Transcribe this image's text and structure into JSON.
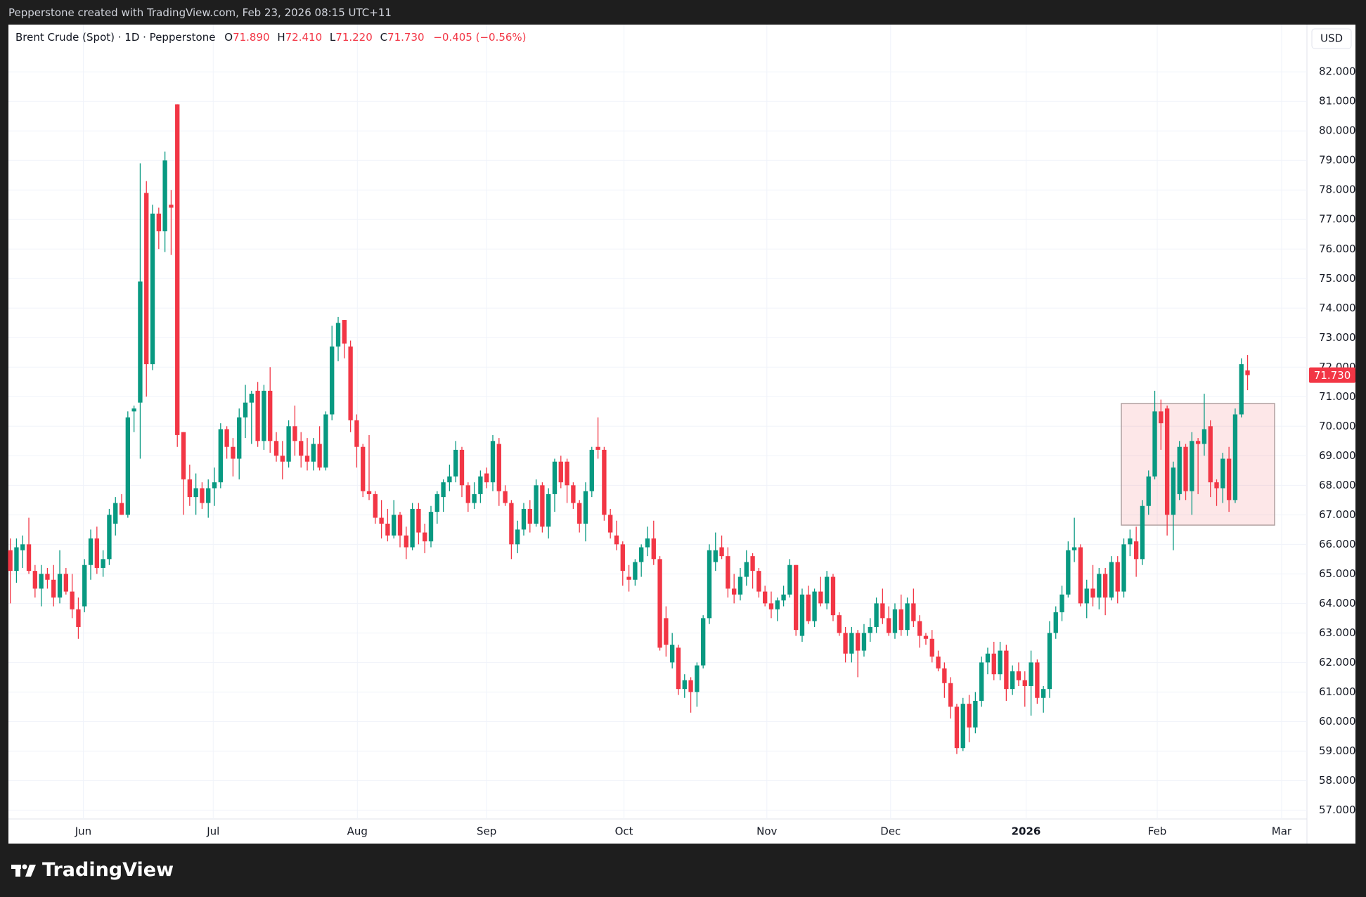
{
  "top_bar": "Pepperstone created with TradingView.com, Feb 23, 2026 08:15 UTC+11",
  "brand": "TradingView",
  "chart_data": {
    "type": "candlestick",
    "title": "Brent Crude (Spot) · 1D · Pepperstone",
    "legend": {
      "o_label": "O",
      "open": "71.890",
      "h_label": "H",
      "high": "72.410",
      "l_label": "L",
      "low": "71.220",
      "c_label": "C",
      "close": "71.730",
      "change": "−0.405 (−0.56%)"
    },
    "currency": "USD",
    "price_label": "71.730",
    "up_color": "#089981",
    "down_color": "#f23645",
    "grid": true,
    "xlim": [
      -0.3,
      209.6
    ],
    "xticks": [
      {
        "value": 11.8,
        "label": "Jun"
      },
      {
        "value": 32.8,
        "label": "Jul"
      },
      {
        "value": 56.1,
        "label": "Aug"
      },
      {
        "value": 77,
        "label": "Sep"
      },
      {
        "value": 99.2,
        "label": "Oct"
      },
      {
        "value": 122.3,
        "label": "Nov"
      },
      {
        "value": 142.3,
        "label": "Dec"
      },
      {
        "value": 164.2,
        "label": "2026"
      },
      {
        "value": 185.4,
        "label": "Feb"
      },
      {
        "value": 205.5,
        "label": "Mar"
      }
    ],
    "ylim": [
      56.7,
      83.6
    ],
    "yticks": [
      {
        "value": 57,
        "label": "57.000"
      },
      {
        "value": 58,
        "label": "58.000"
      },
      {
        "value": 59,
        "label": "59.000"
      },
      {
        "value": 60,
        "label": "60.000"
      },
      {
        "value": 61,
        "label": "61.000"
      },
      {
        "value": 62,
        "label": "62.000"
      },
      {
        "value": 63,
        "label": "63.000"
      },
      {
        "value": 64,
        "label": "64.000"
      },
      {
        "value": 65,
        "label": "65.000"
      },
      {
        "value": 66,
        "label": "66.000"
      },
      {
        "value": 67,
        "label": "67.000"
      },
      {
        "value": 68,
        "label": "68.000"
      },
      {
        "value": 69,
        "label": "69.000"
      },
      {
        "value": 70,
        "label": "70.000"
      },
      {
        "value": 71,
        "label": "71.000"
      },
      {
        "value": 72,
        "label": "72.000"
      },
      {
        "value": 73,
        "label": "73.000"
      },
      {
        "value": 74,
        "label": "74.000"
      },
      {
        "value": 75,
        "label": "75.000"
      },
      {
        "value": 76,
        "label": "76.000"
      },
      {
        "value": 77,
        "label": "77.000"
      },
      {
        "value": 78,
        "label": "78.000"
      },
      {
        "value": 79,
        "label": "79.000"
      },
      {
        "value": 80,
        "label": "80.000"
      },
      {
        "value": 81,
        "label": "81.000"
      },
      {
        "value": 82,
        "label": "82.000"
      }
    ],
    "candles": [
      [
        65.8,
        66.2,
        64.0,
        65.1
      ],
      [
        65.1,
        66.2,
        64.7,
        65.9
      ],
      [
        65.8,
        66.3,
        65.2,
        66.0
      ],
      [
        66.0,
        66.9,
        65.0,
        65.1
      ],
      [
        65.1,
        65.3,
        64.2,
        64.5
      ],
      [
        64.5,
        65.3,
        63.9,
        65.0
      ],
      [
        65.0,
        65.2,
        64.5,
        64.8
      ],
      [
        64.8,
        65.3,
        63.9,
        64.2
      ],
      [
        64.2,
        65.8,
        64.0,
        65.0
      ],
      [
        65.0,
        65.2,
        64.3,
        64.4
      ],
      [
        64.4,
        65.0,
        63.5,
        63.8
      ],
      [
        63.8,
        64.2,
        62.8,
        63.2
      ],
      [
        63.9,
        65.5,
        63.7,
        65.3
      ],
      [
        65.3,
        66.5,
        64.8,
        66.2
      ],
      [
        66.2,
        66.6,
        65.0,
        65.2
      ],
      [
        65.2,
        65.8,
        64.9,
        65.5
      ],
      [
        65.5,
        67.2,
        65.3,
        67.0
      ],
      [
        66.7,
        67.6,
        66.3,
        67.4
      ],
      [
        67.4,
        67.7,
        67.0,
        67.0
      ],
      [
        67.0,
        70.5,
        66.9,
        70.3
      ],
      [
        70.5,
        70.7,
        69.8,
        70.6
      ],
      [
        70.8,
        78.9,
        68.9,
        74.9
      ],
      [
        77.9,
        78.3,
        71.0,
        72.1
      ],
      [
        72.1,
        77.5,
        71.9,
        77.2
      ],
      [
        77.2,
        77.4,
        76.0,
        76.6
      ],
      [
        76.6,
        79.3,
        75.9,
        79.0
      ],
      [
        77.5,
        78.0,
        75.8,
        77.4
      ],
      [
        80.9,
        80.9,
        69.3,
        69.7
      ],
      [
        69.8,
        69.8,
        67.0,
        68.2
      ],
      [
        68.2,
        68.7,
        67.3,
        67.6
      ],
      [
        67.6,
        68.4,
        67.0,
        67.9
      ],
      [
        67.9,
        68.1,
        67.2,
        67.4
      ],
      [
        67.4,
        68.2,
        66.9,
        67.9
      ],
      [
        67.9,
        68.6,
        67.3,
        68.1
      ],
      [
        68.1,
        70.1,
        67.9,
        69.9
      ],
      [
        69.9,
        70.0,
        68.9,
        69.3
      ],
      [
        69.3,
        69.6,
        68.3,
        68.9
      ],
      [
        68.9,
        70.6,
        68.2,
        70.3
      ],
      [
        70.3,
        71.4,
        69.6,
        70.8
      ],
      [
        70.8,
        71.2,
        69.4,
        71.1
      ],
      [
        71.2,
        71.5,
        69.3,
        69.5
      ],
      [
        69.5,
        71.4,
        69.2,
        71.2
      ],
      [
        71.2,
        72.0,
        69.1,
        69.5
      ],
      [
        69.5,
        69.8,
        68.8,
        69.0
      ],
      [
        69.0,
        69.5,
        68.2,
        68.8
      ],
      [
        68.8,
        70.2,
        68.6,
        70.0
      ],
      [
        70.0,
        70.7,
        69.0,
        69.5
      ],
      [
        69.5,
        69.8,
        68.6,
        69.0
      ],
      [
        69.0,
        69.6,
        68.5,
        68.8
      ],
      [
        68.8,
        69.6,
        68.5,
        69.4
      ],
      [
        69.4,
        70.0,
        68.5,
        68.6
      ],
      [
        68.6,
        70.5,
        68.5,
        70.4
      ],
      [
        70.4,
        73.4,
        70.2,
        72.7
      ],
      [
        72.7,
        73.7,
        72.2,
        73.5
      ],
      [
        73.6,
        73.6,
        72.3,
        72.8
      ],
      [
        72.7,
        72.9,
        69.8,
        70.2
      ],
      [
        70.2,
        70.4,
        68.6,
        69.3
      ],
      [
        69.3,
        69.4,
        67.6,
        67.8
      ],
      [
        67.8,
        69.7,
        67.5,
        67.7
      ],
      [
        67.7,
        67.8,
        66.7,
        66.9
      ],
      [
        66.9,
        67.5,
        66.2,
        66.7
      ],
      [
        66.7,
        67.2,
        66.1,
        66.3
      ],
      [
        66.3,
        67.5,
        66.2,
        67.0
      ],
      [
        67.0,
        67.1,
        65.9,
        66.3
      ],
      [
        66.3,
        66.6,
        65.5,
        65.9
      ],
      [
        65.9,
        67.4,
        65.8,
        67.2
      ],
      [
        67.2,
        67.4,
        66.0,
        66.4
      ],
      [
        66.4,
        66.7,
        65.7,
        66.1
      ],
      [
        66.1,
        67.3,
        65.9,
        67.1
      ],
      [
        67.1,
        67.8,
        66.7,
        67.7
      ],
      [
        67.6,
        68.2,
        67.1,
        68.1
      ],
      [
        68.1,
        68.7,
        67.8,
        68.3
      ],
      [
        68.3,
        69.5,
        68.1,
        69.2
      ],
      [
        69.2,
        69.3,
        67.6,
        68.0
      ],
      [
        68.0,
        68.1,
        67.1,
        67.4
      ],
      [
        67.4,
        68.1,
        67.2,
        67.7
      ],
      [
        67.7,
        68.5,
        67.4,
        68.3
      ],
      [
        68.4,
        68.6,
        67.9,
        68.1
      ],
      [
        68.1,
        69.7,
        67.8,
        69.5
      ],
      [
        69.4,
        69.6,
        67.3,
        67.8
      ],
      [
        67.8,
        68.0,
        67.3,
        67.4
      ],
      [
        67.4,
        67.5,
        65.5,
        66.0
      ],
      [
        66.0,
        66.8,
        65.7,
        66.5
      ],
      [
        66.5,
        67.4,
        66.3,
        67.2
      ],
      [
        67.2,
        67.5,
        66.4,
        66.7
      ],
      [
        66.7,
        68.2,
        66.6,
        68.0
      ],
      [
        68.0,
        68.1,
        66.4,
        66.6
      ],
      [
        66.6,
        67.9,
        66.2,
        67.7
      ],
      [
        67.7,
        68.9,
        67.1,
        68.8
      ],
      [
        68.8,
        69.0,
        67.9,
        68.1
      ],
      [
        68.8,
        68.9,
        67.4,
        68.0
      ],
      [
        68.0,
        68.1,
        67.2,
        67.4
      ],
      [
        67.4,
        67.5,
        66.4,
        66.7
      ],
      [
        66.7,
        68.1,
        66.1,
        67.8
      ],
      [
        67.8,
        69.3,
        67.6,
        69.2
      ],
      [
        69.3,
        70.3,
        68.9,
        69.2
      ],
      [
        69.2,
        69.3,
        66.8,
        67.0
      ],
      [
        67.0,
        67.2,
        66.2,
        66.4
      ],
      [
        66.3,
        66.8,
        65.8,
        66.0
      ],
      [
        66.0,
        66.1,
        64.6,
        65.1
      ],
      [
        64.9,
        65.3,
        64.4,
        64.8
      ],
      [
        64.8,
        65.5,
        64.6,
        65.4
      ],
      [
        65.4,
        66.0,
        64.9,
        65.9
      ],
      [
        65.9,
        66.6,
        65.6,
        66.2
      ],
      [
        66.2,
        66.8,
        65.3,
        65.5
      ],
      [
        65.5,
        65.6,
        62.4,
        62.5
      ],
      [
        63.5,
        63.9,
        62.2,
        62.6
      ],
      [
        62.0,
        63.0,
        61.8,
        62.6
      ],
      [
        62.5,
        62.6,
        60.9,
        61.1
      ],
      [
        61.1,
        61.6,
        60.8,
        61.4
      ],
      [
        61.4,
        61.5,
        60.3,
        61.0
      ],
      [
        61.0,
        62.0,
        60.5,
        61.9
      ],
      [
        61.9,
        63.6,
        61.8,
        63.5
      ],
      [
        63.5,
        66.0,
        63.3,
        65.8
      ],
      [
        65.4,
        66.4,
        65.1,
        65.8
      ],
      [
        65.9,
        66.3,
        65.5,
        65.6
      ],
      [
        65.6,
        65.9,
        64.2,
        64.5
      ],
      [
        64.5,
        65.0,
        64.0,
        64.3
      ],
      [
        64.3,
        65.2,
        64.1,
        64.9
      ],
      [
        64.9,
        65.8,
        64.6,
        65.4
      ],
      [
        65.6,
        65.7,
        64.5,
        65.1
      ],
      [
        65.1,
        65.2,
        64.2,
        64.4
      ],
      [
        64.4,
        64.6,
        63.9,
        64.0
      ],
      [
        64.0,
        64.4,
        63.5,
        63.8
      ],
      [
        63.8,
        64.2,
        63.4,
        64.1
      ],
      [
        64.1,
        64.6,
        63.9,
        64.3
      ],
      [
        64.3,
        65.5,
        64.2,
        65.3
      ],
      [
        65.3,
        65.3,
        62.9,
        63.1
      ],
      [
        62.9,
        64.5,
        62.7,
        64.3
      ],
      [
        64.3,
        64.6,
        63.3,
        63.4
      ],
      [
        63.4,
        64.5,
        63.2,
        64.4
      ],
      [
        64.4,
        64.9,
        63.9,
        64.0
      ],
      [
        64.0,
        65.1,
        63.8,
        64.9
      ],
      [
        64.9,
        65.0,
        63.4,
        63.6
      ],
      [
        63.6,
        63.7,
        62.9,
        63.0
      ],
      [
        63.0,
        63.2,
        62.0,
        62.3
      ],
      [
        62.3,
        63.2,
        62.0,
        63.0
      ],
      [
        63.0,
        63.1,
        61.5,
        62.4
      ],
      [
        62.4,
        63.3,
        62.2,
        63.0
      ],
      [
        63.0,
        63.5,
        62.7,
        63.2
      ],
      [
        63.2,
        64.2,
        63.0,
        64.0
      ],
      [
        64.0,
        64.5,
        63.3,
        63.5
      ],
      [
        63.5,
        63.9,
        62.9,
        63.0
      ],
      [
        63.0,
        64.0,
        62.8,
        63.8
      ],
      [
        63.8,
        64.3,
        62.9,
        63.1
      ],
      [
        63.1,
        64.2,
        62.9,
        64.0
      ],
      [
        64.0,
        64.5,
        63.2,
        63.4
      ],
      [
        63.4,
        63.6,
        62.5,
        62.9
      ],
      [
        62.9,
        63.0,
        62.6,
        62.8
      ],
      [
        62.8,
        63.1,
        62.0,
        62.2
      ],
      [
        62.2,
        62.4,
        61.7,
        61.8
      ],
      [
        61.8,
        62.0,
        60.8,
        61.3
      ],
      [
        61.3,
        61.5,
        60.1,
        60.5
      ],
      [
        60.5,
        60.6,
        58.9,
        59.1
      ],
      [
        59.1,
        60.8,
        59.0,
        60.6
      ],
      [
        60.6,
        60.9,
        59.3,
        59.8
      ],
      [
        59.8,
        61.0,
        59.6,
        60.7
      ],
      [
        60.7,
        62.2,
        60.5,
        62.0
      ],
      [
        62.0,
        62.5,
        61.6,
        62.3
      ],
      [
        62.3,
        62.7,
        61.4,
        61.6
      ],
      [
        61.6,
        62.7,
        61.4,
        62.4
      ],
      [
        62.4,
        62.6,
        60.7,
        61.1
      ],
      [
        61.1,
        61.9,
        60.9,
        61.7
      ],
      [
        61.7,
        62.0,
        61.2,
        61.4
      ],
      [
        61.4,
        61.7,
        60.5,
        61.2
      ],
      [
        61.2,
        62.4,
        60.2,
        62.0
      ],
      [
        62.0,
        62.1,
        60.6,
        60.8
      ],
      [
        60.8,
        61.2,
        60.3,
        61.1
      ],
      [
        61.1,
        63.4,
        60.8,
        63.0
      ],
      [
        63.0,
        63.9,
        62.8,
        63.7
      ],
      [
        63.7,
        64.6,
        63.4,
        64.3
      ],
      [
        64.3,
        66.1,
        64.2,
        65.8
      ],
      [
        65.8,
        66.9,
        65.4,
        65.9
      ],
      [
        65.9,
        66.0,
        63.9,
        64.0
      ],
      [
        64.0,
        64.8,
        63.5,
        64.5
      ],
      [
        64.5,
        65.3,
        63.9,
        64.2
      ],
      [
        64.2,
        65.2,
        63.8,
        65.0
      ],
      [
        65.0,
        65.2,
        63.6,
        64.2
      ],
      [
        64.2,
        65.6,
        64.1,
        65.4
      ],
      [
        65.4,
        65.6,
        64.0,
        64.4
      ],
      [
        64.4,
        66.2,
        64.2,
        66.0
      ],
      [
        66.0,
        66.5,
        65.6,
        66.2
      ],
      [
        66.1,
        66.6,
        64.9,
        65.5
      ],
      [
        65.5,
        67.5,
        65.3,
        67.3
      ],
      [
        67.3,
        68.5,
        67.0,
        68.3
      ],
      [
        68.3,
        71.2,
        68.2,
        70.5
      ],
      [
        70.5,
        70.9,
        69.2,
        70.1
      ],
      [
        70.6,
        70.7,
        66.3,
        67.0
      ],
      [
        67.0,
        68.8,
        65.8,
        68.6
      ],
      [
        67.7,
        69.5,
        67.5,
        69.3
      ],
      [
        69.3,
        69.4,
        67.5,
        67.8
      ],
      [
        67.8,
        69.8,
        67.0,
        69.5
      ],
      [
        69.5,
        69.6,
        67.7,
        69.4
      ],
      [
        69.4,
        71.1,
        69.0,
        69.9
      ],
      [
        70.0,
        70.2,
        67.6,
        68.1
      ],
      [
        68.1,
        68.2,
        67.3,
        67.9
      ],
      [
        67.9,
        69.1,
        67.4,
        68.9
      ],
      [
        68.9,
        69.3,
        67.1,
        67.5
      ],
      [
        67.5,
        70.6,
        67.4,
        70.4
      ],
      [
        70.4,
        72.3,
        70.3,
        72.1
      ],
      [
        71.89,
        72.41,
        71.22,
        71.73
      ]
    ]
  }
}
